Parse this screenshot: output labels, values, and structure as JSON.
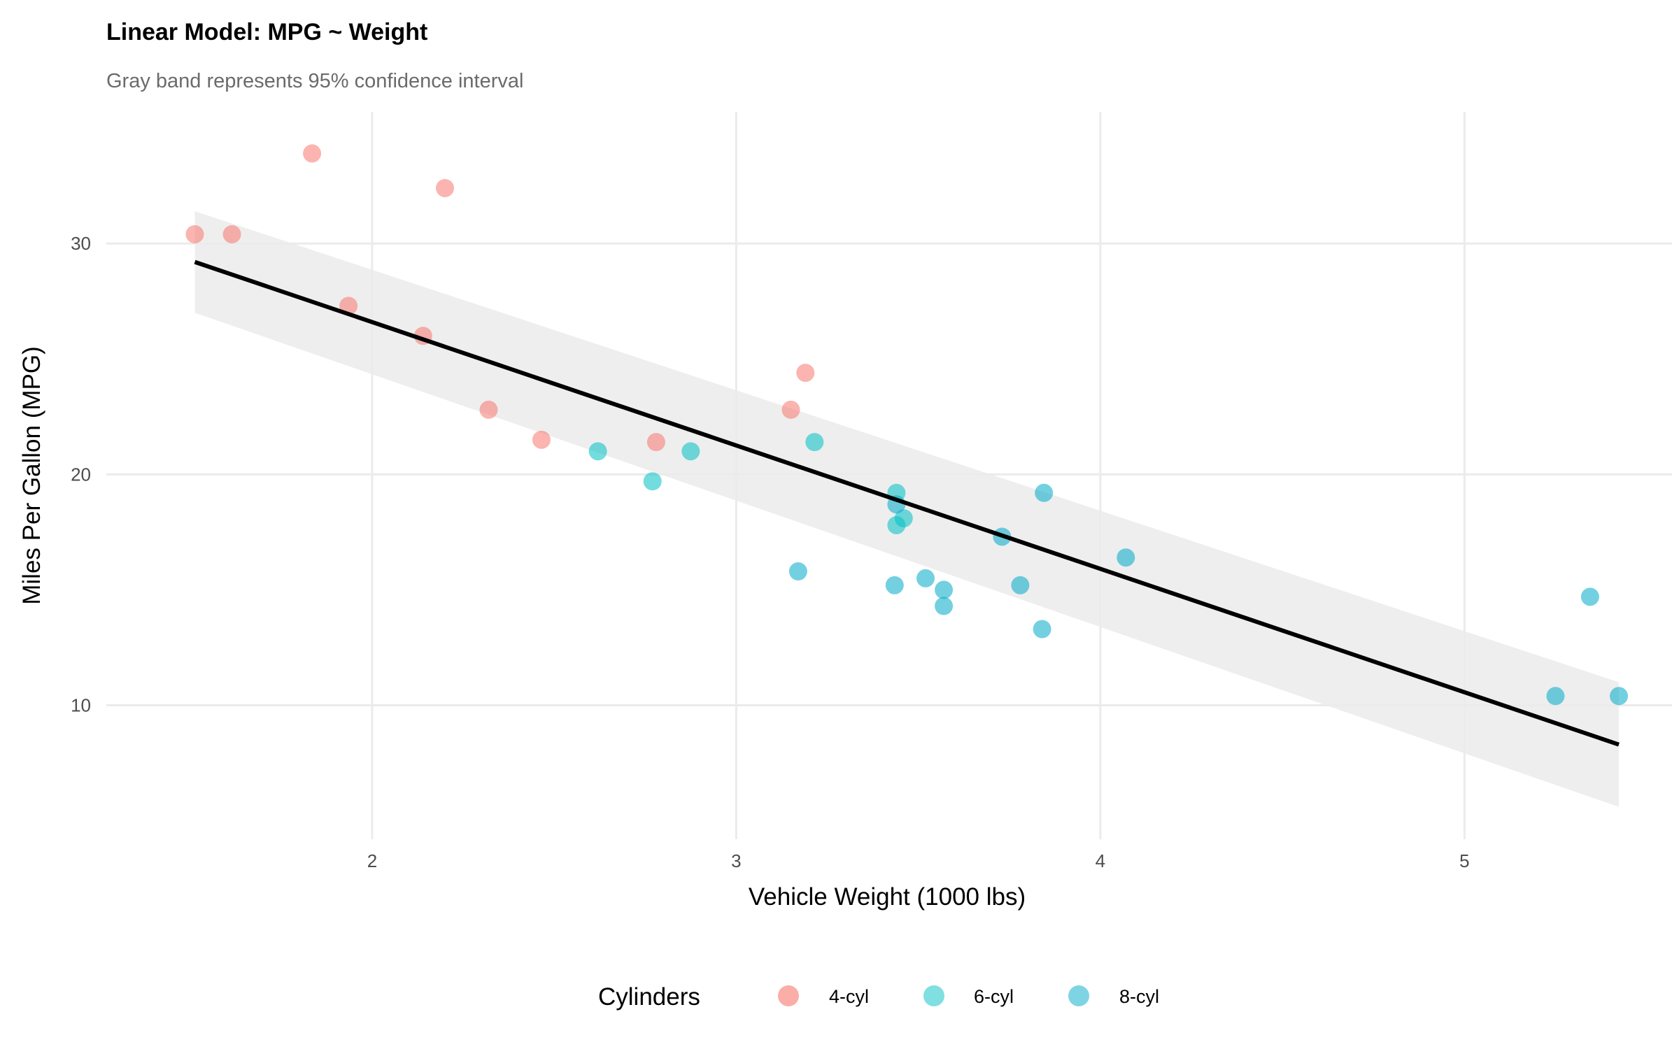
{
  "chart_data": {
    "type": "scatter",
    "title": "Linear Model: MPG ~ Weight",
    "subtitle": "Gray band represents 95% confidence interval",
    "xlabel": "Vehicle Weight (1000 lbs)",
    "ylabel": "Miles Per Gallon (MPG)",
    "xlim": [
      1.27,
      5.57
    ],
    "ylim": [
      4.2,
      35.7
    ],
    "xticks": [
      2,
      3,
      4,
      5
    ],
    "yticks": [
      10,
      20,
      30
    ],
    "grid": true,
    "legend": {
      "title": "Cylinders",
      "position": "bottom",
      "entries": [
        "4-cyl",
        "6-cyl",
        "8-cyl"
      ]
    },
    "colors": {
      "4-cyl": "#F8766D",
      "6-cyl": "#00BFC4",
      "8-cyl": "#00A9C9",
      "fit_line": "#000000",
      "band": "#ebebeb"
    },
    "series": [
      {
        "name": "4-cyl",
        "x": [
          1.513,
          1.615,
          1.835,
          1.935,
          2.2,
          2.14,
          2.32,
          2.465,
          2.78,
          3.15,
          3.19
        ],
        "y": [
          30.4,
          30.4,
          33.9,
          27.3,
          32.4,
          26.0,
          22.8,
          21.5,
          21.4,
          22.8,
          24.4
        ]
      },
      {
        "name": "6-cyl",
        "x": [
          2.62,
          2.77,
          2.875,
          3.215,
          3.44,
          3.44,
          3.46
        ],
        "y": [
          21.0,
          19.7,
          21.0,
          21.4,
          19.2,
          17.8,
          18.1
        ]
      },
      {
        "name": "8-cyl",
        "x": [
          3.17,
          3.435,
          3.44,
          3.52,
          3.57,
          3.57,
          3.73,
          3.78,
          3.84,
          3.845,
          4.07,
          5.25,
          5.345,
          5.424
        ],
        "y": [
          15.8,
          15.2,
          18.7,
          15.5,
          15.0,
          14.3,
          17.3,
          15.2,
          13.3,
          19.2,
          16.4,
          10.4,
          14.7,
          10.4
        ]
      }
    ],
    "fit": {
      "intercept": 37.285,
      "slope": -5.344,
      "x_range": [
        1.513,
        5.424
      ],
      "ci_lower": [
        27.0,
        5.6
      ],
      "ci_upper": [
        31.4,
        11.0
      ]
    }
  }
}
